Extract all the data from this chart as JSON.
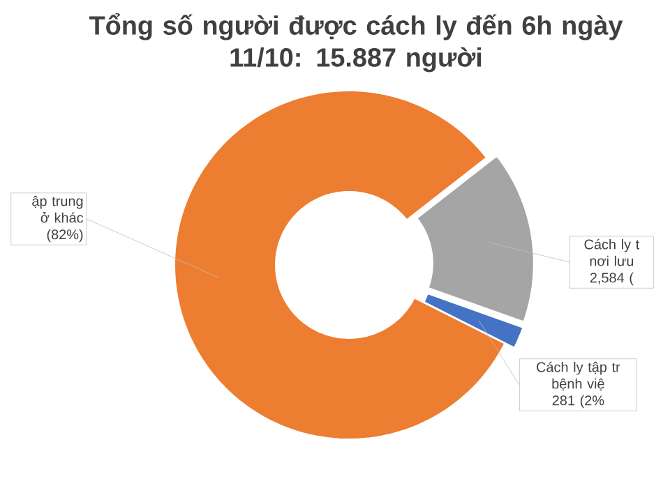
{
  "chart_data": {
    "type": "donut",
    "title": "Tổng số người được cách ly đến 6h ngày\n11/10: 15.887 người",
    "categories": [
      "Cách ly t\nnơi lưu\n2,584 (",
      "Cách ly tập tr\nbệnh việ\n281 (2%",
      "ập trung\nở khác\n(82%)"
    ],
    "values": [
      16,
      2,
      82
    ],
    "colors": [
      "#a5a5a5",
      "#4472c4",
      "#ed7d31"
    ]
  }
}
